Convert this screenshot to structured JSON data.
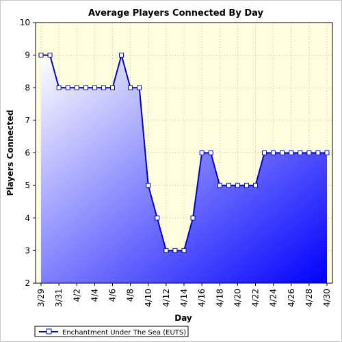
{
  "chart_data": {
    "type": "area",
    "title": "Average Players Connected By Day",
    "xlabel": "Day",
    "ylabel": "Players Connected",
    "ylim": [
      2,
      10
    ],
    "yticks": [
      2,
      3,
      4,
      5,
      6,
      7,
      8,
      9,
      10
    ],
    "categories": [
      "3/29",
      "3/30",
      "3/31",
      "4/1",
      "4/2",
      "4/3",
      "4/4",
      "4/5",
      "4/6",
      "4/7",
      "4/8",
      "4/9",
      "4/10",
      "4/11",
      "4/12",
      "4/13",
      "4/14",
      "4/15",
      "4/16",
      "4/17",
      "4/18",
      "4/19",
      "4/20",
      "4/21",
      "4/22",
      "4/23",
      "4/24",
      "4/25",
      "4/26",
      "4/27",
      "4/28",
      "4/29",
      "4/30"
    ],
    "tick_labels": [
      "3/29",
      "3/31",
      "4/2",
      "4/4",
      "4/6",
      "4/8",
      "4/10",
      "4/12",
      "4/14",
      "4/16",
      "4/18",
      "4/20",
      "4/22",
      "4/24",
      "4/26",
      "4/28",
      "4/30"
    ],
    "series": [
      {
        "name": "Enchantment Under The Sea (EUTS)",
        "values": [
          9,
          9,
          8,
          8,
          8,
          8,
          8,
          8,
          8,
          9,
          8,
          8,
          5,
          4,
          3,
          3,
          3,
          4,
          6,
          6,
          5,
          5,
          5,
          5,
          5,
          6,
          6,
          6,
          6,
          6,
          6,
          6,
          6
        ]
      }
    ],
    "grid": true,
    "legend": "bottom-left",
    "colors": {
      "plot_background": "#ffffe0",
      "line": "#0000cc",
      "fill_light": "#ffffff",
      "fill_dark": "#0000ff",
      "marker_fill": "#ffffff"
    }
  }
}
